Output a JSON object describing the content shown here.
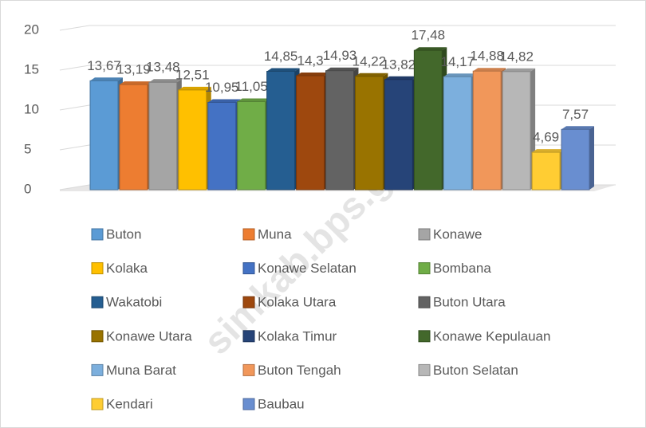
{
  "watermark": "simkab.bps.go.id",
  "chart_data": {
    "type": "bar3d",
    "ylim": [
      0,
      20
    ],
    "yticks": [
      0,
      5,
      10,
      15,
      20
    ],
    "grid": true,
    "series": [
      {
        "name": "Buton",
        "color": "#5b9bd5",
        "values": [
          13.67
        ],
        "value_labels": [
          "13,67"
        ]
      },
      {
        "name": "Muna",
        "color": "#ed7d31",
        "values": [
          13.19
        ],
        "value_labels": [
          "13,19"
        ]
      },
      {
        "name": "Konawe",
        "color": "#a5a5a5",
        "values": [
          13.48
        ],
        "value_labels": [
          "13,48"
        ]
      },
      {
        "name": "Kolaka",
        "color": "#ffc000",
        "values": [
          12.51
        ],
        "value_labels": [
          "12,51"
        ]
      },
      {
        "name": "Konawe Selatan",
        "color": "#4472c4",
        "values": [
          10.95
        ],
        "value_labels": [
          "10,95"
        ]
      },
      {
        "name": "Bombana",
        "color": "#70ad47",
        "values": [
          11.05
        ],
        "value_labels": [
          "11,05"
        ]
      },
      {
        "name": "Wakatobi",
        "color": "#255e91",
        "values": [
          14.85
        ],
        "value_labels": [
          "14,85"
        ]
      },
      {
        "name": "Kolaka Utara",
        "color": "#9e480e",
        "values": [
          14.3
        ],
        "value_labels": [
          "14,3"
        ]
      },
      {
        "name": "Buton Utara",
        "color": "#636363",
        "values": [
          14.93
        ],
        "value_labels": [
          "14,93"
        ]
      },
      {
        "name": "Konawe Utara",
        "color": "#997300",
        "values": [
          14.22
        ],
        "value_labels": [
          "14,22"
        ]
      },
      {
        "name": "Kolaka Timur",
        "color": "#264478",
        "values": [
          13.82
        ],
        "value_labels": [
          "13,82"
        ]
      },
      {
        "name": "Konawe Kepulauan",
        "color": "#43682b",
        "values": [
          17.48
        ],
        "value_labels": [
          "17,48"
        ]
      },
      {
        "name": "Muna Barat",
        "color": "#7cafdd",
        "values": [
          14.17
        ],
        "value_labels": [
          "14,17"
        ]
      },
      {
        "name": "Buton Tengah",
        "color": "#f1975a",
        "values": [
          14.88
        ],
        "value_labels": [
          "14,88"
        ]
      },
      {
        "name": "Buton Selatan",
        "color": "#b7b7b7",
        "values": [
          14.82
        ],
        "value_labels": [
          "14,82"
        ]
      },
      {
        "name": "Kendari",
        "color": "#ffcd33",
        "values": [
          4.69
        ],
        "value_labels": [
          "4,69"
        ]
      },
      {
        "name": "Baubau",
        "color": "#698ed0",
        "values": [
          7.57
        ],
        "value_labels": [
          "7,57"
        ]
      }
    ]
  }
}
